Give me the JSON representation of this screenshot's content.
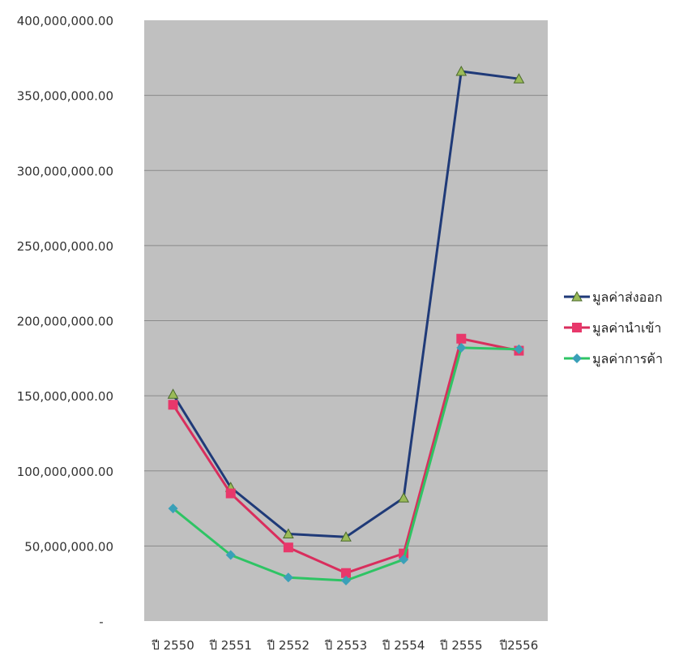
{
  "chart_data": {
    "type": "line",
    "categories": [
      "ปี 2550",
      "ปี 2551",
      "ปี 2552",
      "ปี 2553",
      "ปี 2554",
      "ปี 2555",
      "ปี2556"
    ],
    "series": [
      {
        "name": "มูลค่าส่งออก",
        "color": "#1f3a78",
        "marker": "triangle",
        "marker_color": "#9bbb59",
        "values": [
          151000000,
          89000000,
          58000000,
          56000000,
          82000000,
          366000000,
          361000000
        ]
      },
      {
        "name": "มูลค่านำเข้า",
        "color": "#d92e5d",
        "marker": "square",
        "marker_color": "#e8386b",
        "values": [
          144000000,
          85000000,
          49000000,
          32000000,
          45000000,
          188000000,
          180000000
        ]
      },
      {
        "name": "มูลค่าการค้า",
        "color": "#2ec464",
        "marker": "diamond",
        "marker_color": "#3aa0b8",
        "values": [
          75000000,
          44000000,
          29000000,
          27000000,
          41000000,
          182000000,
          181000000
        ]
      }
    ],
    "y_ticks": [
      "-",
      "50,000,000.00",
      "100,000,000.00",
      "150,000,000.00",
      "200,000,000.00",
      "250,000,000.00",
      "300,000,000.00",
      "350,000,000.00",
      "400,000,000.00"
    ],
    "ylim": [
      0,
      400000000
    ],
    "grid": true,
    "plot_background": "#c0c0c0",
    "legend_position": "right",
    "title": "",
    "xlabel": "",
    "ylabel": ""
  }
}
